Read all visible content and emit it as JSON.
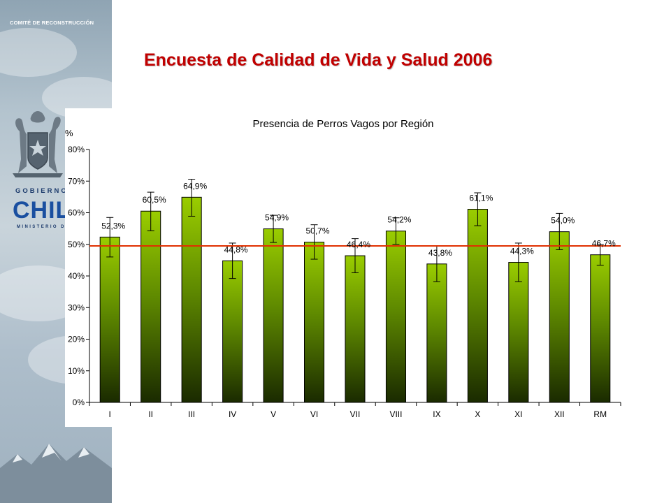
{
  "header": {
    "agency": "COMITÉ DE RECONSTRUCCIÓN",
    "government_line": "GOBIERNO",
    "country": "CHILE",
    "ministry": "MINISTERIO DE"
  },
  "slide": {
    "title": "Encuesta de Calidad de Vida y Salud 2006"
  },
  "colors": {
    "bar_top": "#9acd00",
    "bar_bottom": "#1a2a00",
    "reference_line": "#e03000",
    "title_color": "#c00000"
  },
  "chart_data": {
    "type": "bar",
    "title": "Presencia de Perros Vagos por Región",
    "ylabel": "%",
    "categories": [
      "I",
      "II",
      "III",
      "IV",
      "V",
      "VI",
      "VII",
      "VIII",
      "IX",
      "X",
      "XI",
      "XII",
      "RM"
    ],
    "values": [
      52.3,
      60.5,
      64.9,
      44.8,
      54.9,
      50.7,
      46.4,
      54.2,
      43.8,
      61.1,
      44.3,
      54.0,
      46.7
    ],
    "value_labels": [
      "52,3%",
      "60,5%",
      "64,9%",
      "44,8%",
      "54,9%",
      "50,7%",
      "46,4%",
      "54,2%",
      "43,8%",
      "61,1%",
      "44,3%",
      "54,0%",
      "46,7%"
    ],
    "error_low": [
      46.0,
      54.3,
      58.9,
      39.2,
      50.6,
      45.3,
      41.0,
      50.0,
      38.2,
      55.9,
      38.2,
      48.3,
      43.4
    ],
    "error_high": [
      58.5,
      66.5,
      70.6,
      50.4,
      59.2,
      56.2,
      51.8,
      58.4,
      49.4,
      66.3,
      50.4,
      59.8,
      50.0
    ],
    "reference_line": 49.5,
    "ylim": [
      0,
      80
    ],
    "yticks": [
      "0%",
      "10%",
      "20%",
      "30%",
      "40%",
      "50%",
      "60%",
      "70%",
      "80%"
    ],
    "grid": false,
    "legend": "none"
  }
}
